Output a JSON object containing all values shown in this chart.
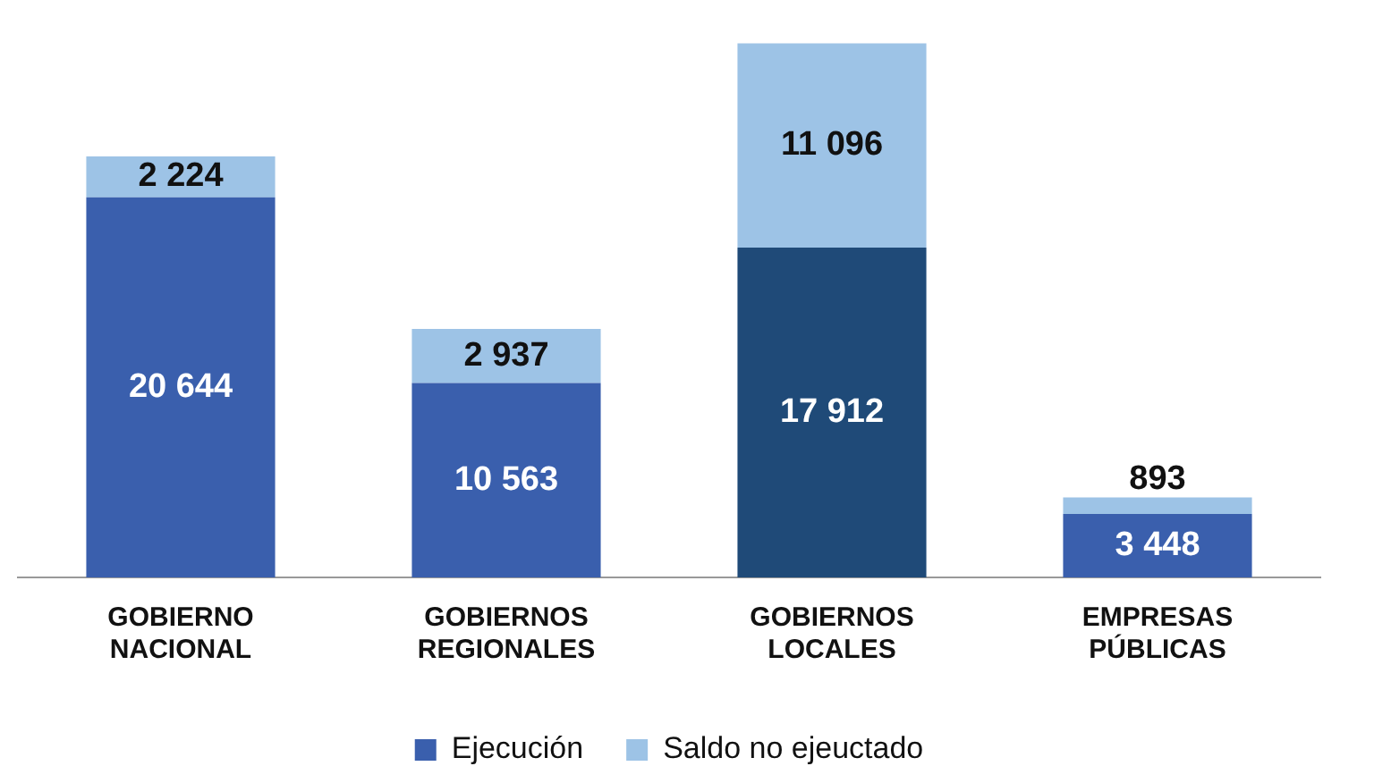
{
  "chart_data": {
    "type": "bar",
    "stacked": true,
    "legend": "bottom",
    "categories": [
      "GOBIERNO NACIONAL",
      "GOBIERNOS REGIONALES",
      "GOBIERNOS LOCALES",
      "EMPRESAS PÚBLICAS"
    ],
    "series": [
      {
        "name": "Ejecución",
        "color": "#3a5fad",
        "colors": [
          "#3a5fad",
          "#3a5fad",
          "#1f4a78",
          "#3a5fad"
        ],
        "values": [
          20644,
          10563,
          17912,
          3448
        ],
        "value_labels": [
          "20 644",
          "10 563",
          "17 912",
          "3 448"
        ]
      },
      {
        "name": "Saldo no ejeuctado",
        "color": "#9dc3e6",
        "values": [
          2224,
          2937,
          11096,
          893
        ],
        "value_labels": [
          "2 224",
          "2 937",
          "11 096",
          "893"
        ]
      }
    ]
  }
}
